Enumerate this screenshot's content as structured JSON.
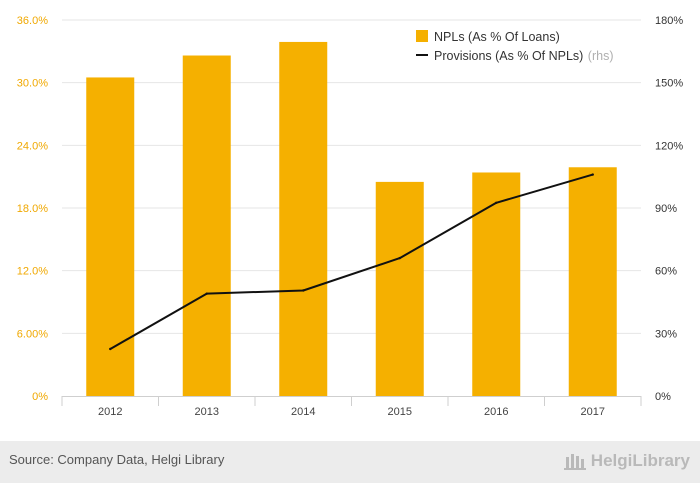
{
  "chart_data": {
    "type": "bar",
    "categories": [
      "2012",
      "2013",
      "2014",
      "2015",
      "2016",
      "2017"
    ],
    "series": [
      {
        "name": "NPLs (As % Of Loans)",
        "type": "bar",
        "axis": "left",
        "color": "#f5b000",
        "values": [
          30.5,
          32.6,
          33.9,
          20.5,
          21.4,
          21.9
        ]
      },
      {
        "name": "Provisions (As % Of NPLs)",
        "name_suffix": "(rhs)",
        "type": "line",
        "axis": "right",
        "color": "#111111",
        "values": [
          22.5,
          49.0,
          50.5,
          66.0,
          92.5,
          106.0
        ]
      }
    ],
    "y_left": {
      "ylim": [
        0,
        36
      ],
      "ticks": [
        0,
        6,
        12,
        18,
        24,
        30,
        36
      ],
      "tick_labels": [
        "0%",
        "6.00%",
        "12.0%",
        "18.0%",
        "24.0%",
        "30.0%",
        "36.0%"
      ]
    },
    "y_right": {
      "ylim": [
        0,
        180
      ],
      "ticks": [
        0,
        30,
        60,
        90,
        120,
        150,
        180
      ],
      "tick_labels": [
        "0%",
        "30%",
        "60%",
        "90%",
        "120%",
        "150%",
        "180%"
      ]
    },
    "grid": true,
    "legend_position": "top-right"
  },
  "footer": {
    "source": "Source: Company Data, Helgi Library",
    "brand": "HelgiLibrary"
  },
  "colors": {
    "accent": "#f5b000",
    "grid": "#e6e6e6",
    "footer_bg": "#ececec"
  }
}
